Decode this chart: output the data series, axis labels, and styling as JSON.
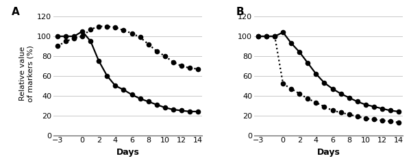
{
  "panel_A": {
    "solid_x": [
      -3,
      -2,
      -1,
      0,
      1,
      2,
      3,
      4,
      5,
      6,
      7,
      8,
      9,
      10,
      11,
      12,
      13,
      14
    ],
    "solid_y": [
      100,
      100,
      100,
      105,
      95,
      75,
      60,
      50,
      46,
      41,
      37,
      34,
      31,
      28,
      26,
      25,
      24,
      24
    ],
    "dotted_x": [
      -3,
      -2,
      -1,
      0,
      1,
      2,
      3,
      4,
      5,
      6,
      7,
      8,
      9,
      10,
      11,
      12,
      13,
      14
    ],
    "dotted_y": [
      90,
      95,
      98,
      100,
      107,
      110,
      110,
      109,
      106,
      103,
      99,
      92,
      85,
      80,
      74,
      70,
      68,
      67
    ]
  },
  "panel_B": {
    "solid_x": [
      -3,
      -2,
      -1,
      0,
      1,
      2,
      3,
      4,
      5,
      6,
      7,
      8,
      9,
      10,
      11,
      12,
      13,
      14
    ],
    "solid_y": [
      100,
      100,
      100,
      104,
      93,
      84,
      73,
      62,
      53,
      47,
      42,
      38,
      34,
      31,
      29,
      27,
      25,
      24
    ],
    "dotted_x": [
      -3,
      -2,
      -1,
      0,
      1,
      2,
      3,
      4,
      5,
      6,
      7,
      8,
      9,
      10,
      11,
      12,
      13,
      14
    ],
    "dotted_y": [
      100,
      100,
      100,
      52,
      47,
      42,
      37,
      33,
      29,
      25,
      23,
      21,
      19,
      17,
      16,
      15,
      14,
      13
    ]
  },
  "ylabel": "Relative value\nof markers (%)",
  "xlabel": "Days",
  "yticks": [
    0,
    20,
    40,
    60,
    80,
    100,
    120
  ],
  "xticks": [
    -3,
    0,
    2,
    4,
    6,
    8,
    10,
    12,
    14
  ],
  "ylim": [
    0,
    125
  ],
  "xlim": [
    -3.5,
    14.5
  ],
  "background": "#ffffff",
  "line_color": "#000000",
  "marker_size": 4.5,
  "line_width": 1.6,
  "grid_color": "#c8c8c8",
  "label_fontsize": 9,
  "tick_fontsize": 8
}
